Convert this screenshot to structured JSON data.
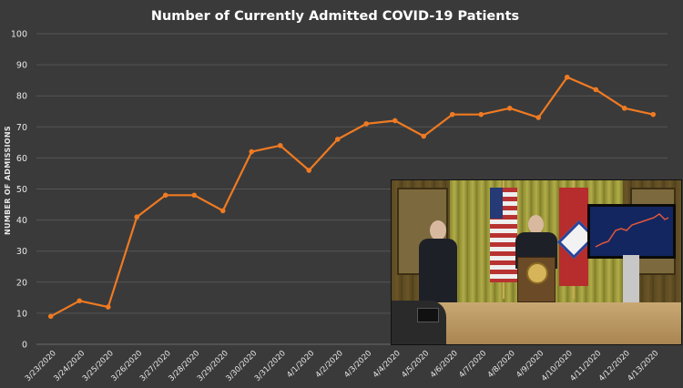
{
  "chart_data": {
    "type": "line",
    "title": "Number of Currently Admitted COVID-19 Patients",
    "ylabel": "NUMBER OF ADMISSIONS",
    "xlabel": "",
    "ylim": [
      0,
      100
    ],
    "yticks": [
      0,
      10,
      20,
      30,
      40,
      50,
      60,
      70,
      80,
      90,
      100
    ],
    "grid": true,
    "line_color": "#ef7a22",
    "categories": [
      "3/23/2020",
      "3/24/2020",
      "3/25/2020",
      "3/26/2020",
      "3/27/2020",
      "3/28/2020",
      "3/29/2020",
      "3/30/2020",
      "3/31/2020",
      "4/1/2020",
      "4/2/2020",
      "4/3/2020",
      "4/4/2020",
      "4/5/2020",
      "4/6/2020",
      "4/7/2020",
      "4/8/2020",
      "4/9/2020",
      "4/10/2020",
      "4/11/2020",
      "4/12/2020",
      "4/13/2020"
    ],
    "series": [
      {
        "values": [
          9,
          14,
          12,
          41,
          48,
          48,
          43,
          62,
          64,
          56,
          66,
          71,
          72,
          67,
          74,
          74,
          76,
          73,
          86,
          82,
          76,
          74
        ]
      }
    ]
  },
  "video_inset": {
    "description_icon": "video-feed-icon"
  },
  "colors": {
    "background": "#3a3a3a",
    "gridline": "#555555",
    "series": "#ef7a22"
  }
}
